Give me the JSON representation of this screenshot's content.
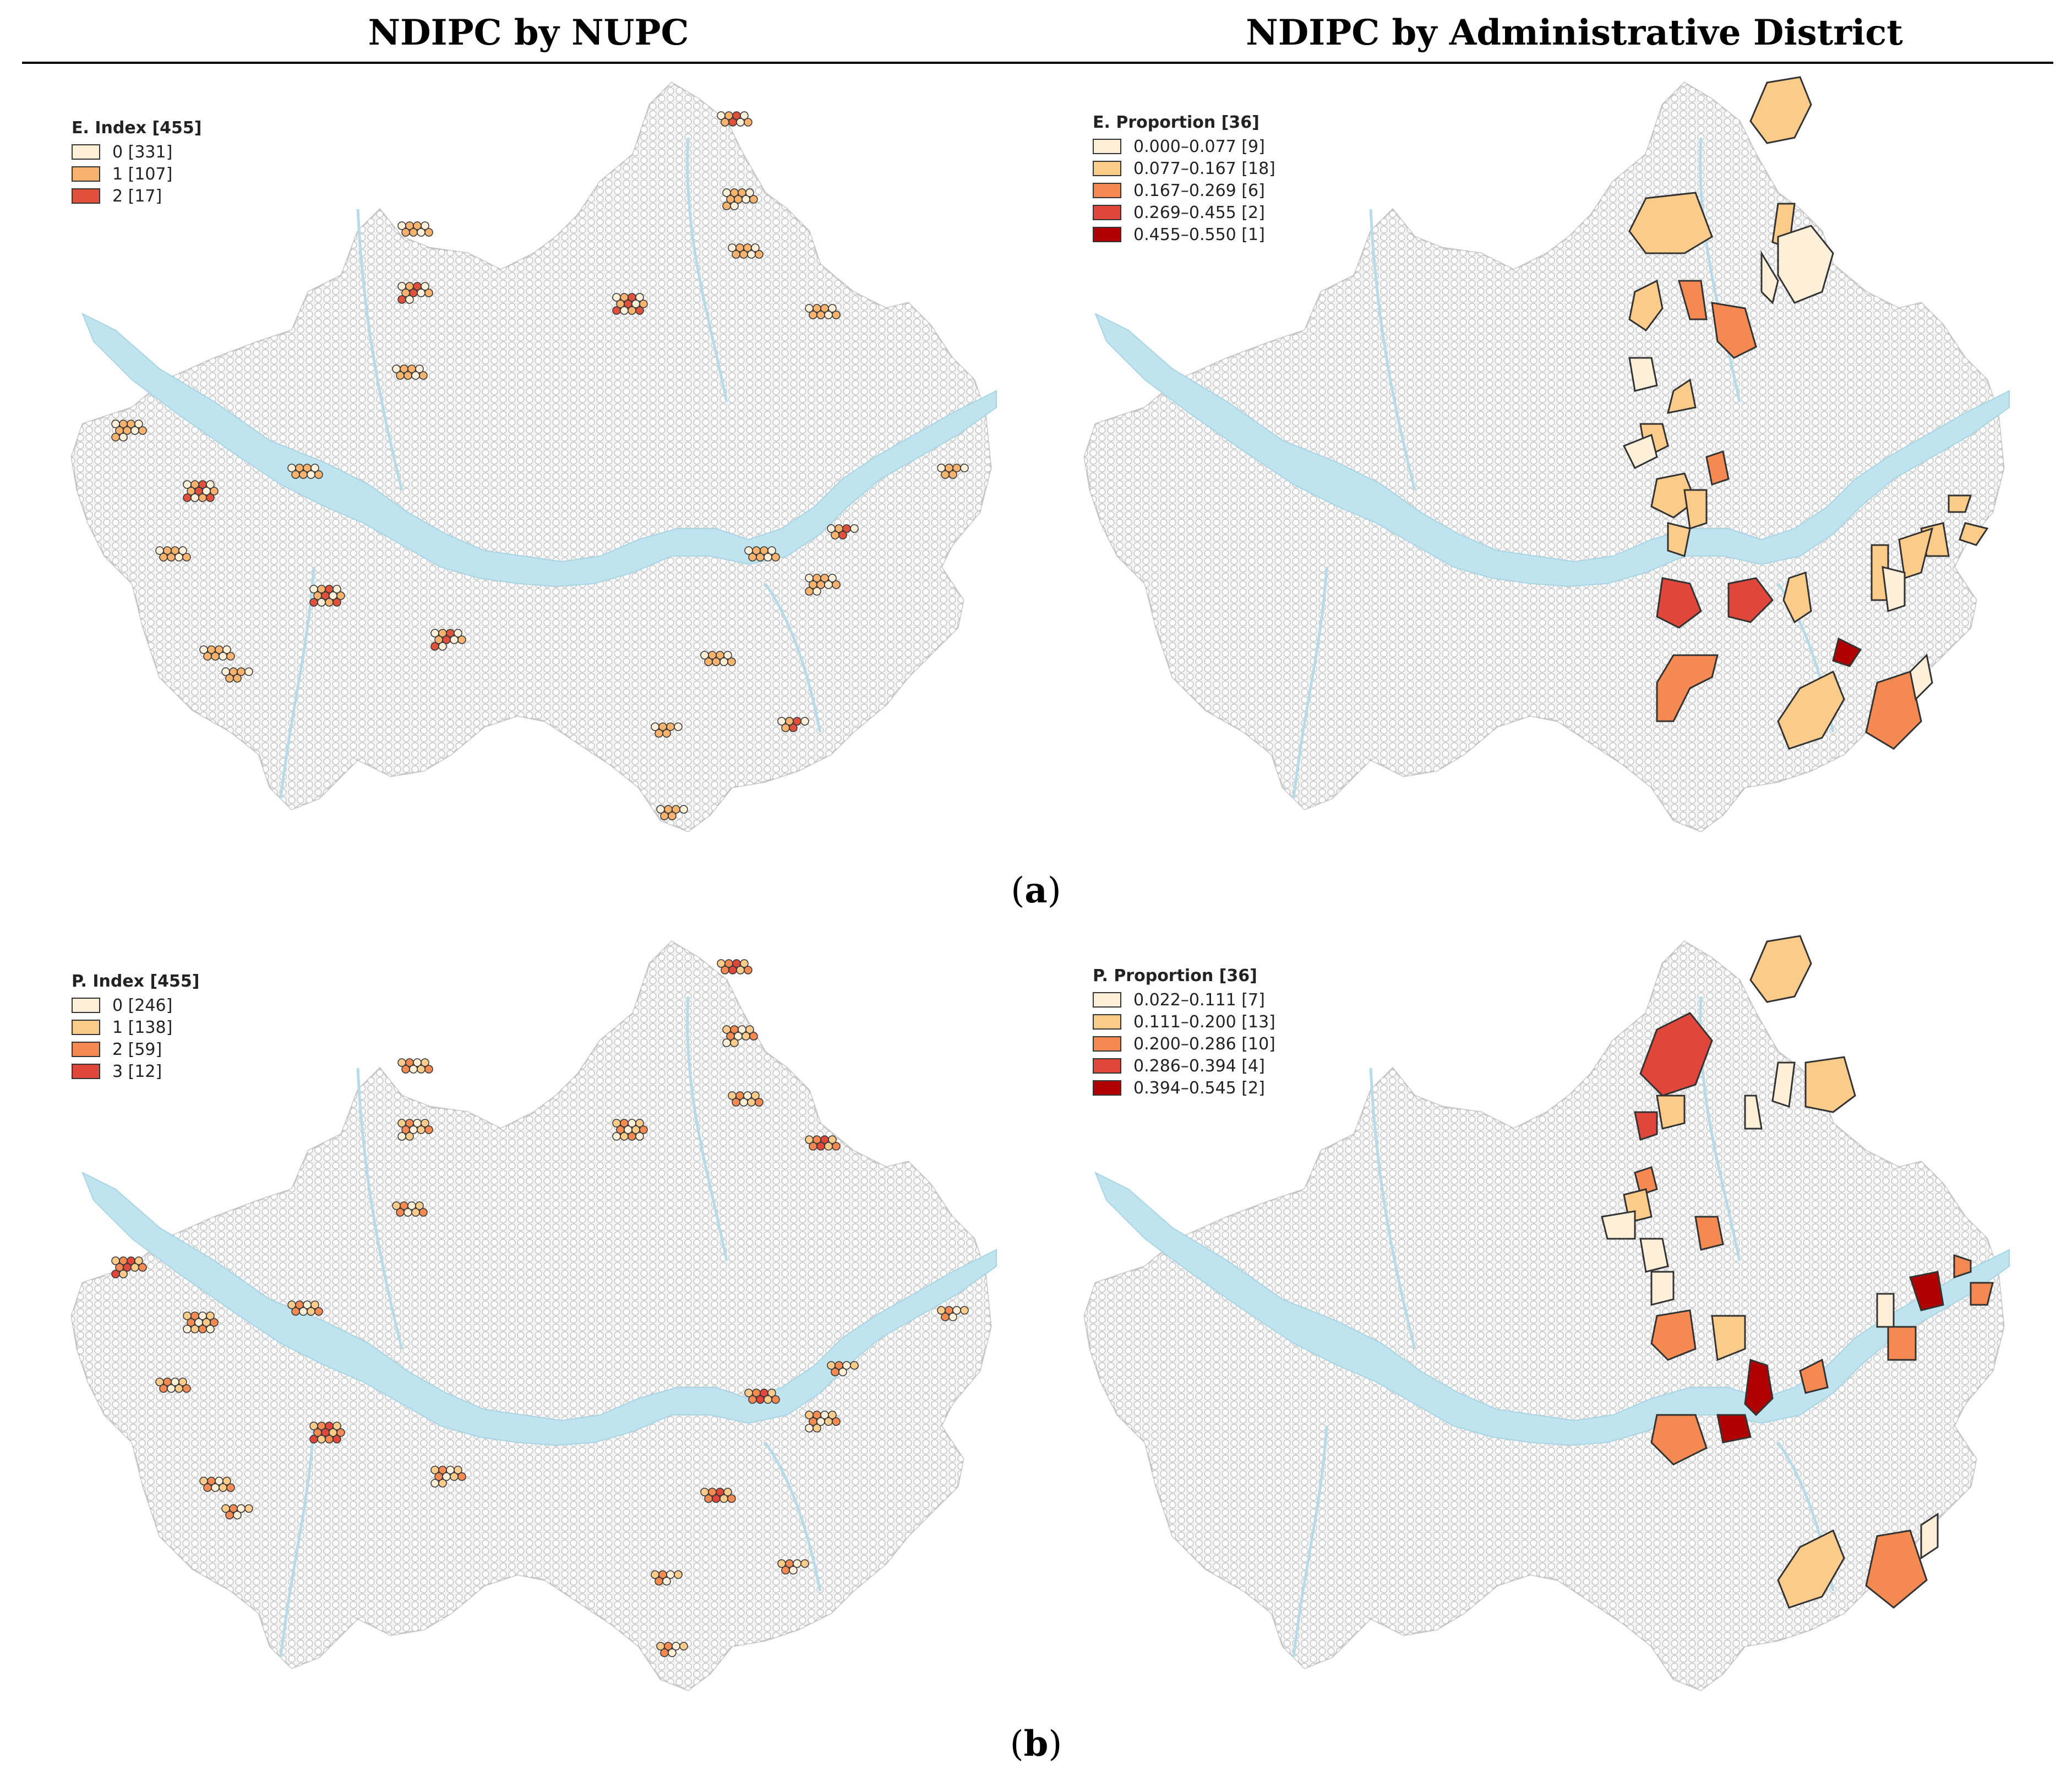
{
  "header": {
    "left_title": "NDIPC by NUPC",
    "right_title": "NDIPC by Administrative District"
  },
  "panel_labels": {
    "a": "a",
    "b": "b"
  },
  "maps": {
    "a_left": {
      "legend_title": "E. Index [455]",
      "classes": [
        {
          "label": "0 [331]",
          "color": "#fdefd8"
        },
        {
          "label": "1 [107]",
          "color": "#f7b26e"
        },
        {
          "label": "2 [17]",
          "color": "#e0503a"
        }
      ]
    },
    "a_right": {
      "legend_title": "E. Proportion [36]",
      "classes": [
        {
          "label": "0.000–0.077 [9]",
          "color": "#fdefd8"
        },
        {
          "label": "0.077–0.167 [18]",
          "color": "#fbcb8a"
        },
        {
          "label": "0.167–0.269 [6]",
          "color": "#f48a52"
        },
        {
          "label": "0.269–0.455 [2]",
          "color": "#e0473a"
        },
        {
          "label": "0.455–0.550 [1]",
          "color": "#b00000"
        }
      ]
    },
    "b_left": {
      "legend_title": "P. Index [455]",
      "classes": [
        {
          "label": "0 [246]",
          "color": "#fdefd8"
        },
        {
          "label": "1 [138]",
          "color": "#fbcb8a"
        },
        {
          "label": "2 [59]",
          "color": "#f48a52"
        },
        {
          "label": "3 [12]",
          "color": "#e0473a"
        }
      ]
    },
    "b_right": {
      "legend_title": "P. Proportion [36]",
      "classes": [
        {
          "label": "0.022–0.111 [7]",
          "color": "#fdefd8"
        },
        {
          "label": "0.111–0.200 [13]",
          "color": "#fbcb8a"
        },
        {
          "label": "0.200–0.286 [10]",
          "color": "#f48a52"
        },
        {
          "label": "0.286–0.394 [4]",
          "color": "#e0473a"
        },
        {
          "label": "0.394–0.545 [2]",
          "color": "#b00000"
        }
      ]
    }
  },
  "colors": {
    "river": "#bfe3ef",
    "hex_stroke": "#b9b9b9",
    "city_fill": "#f4f4f4"
  }
}
